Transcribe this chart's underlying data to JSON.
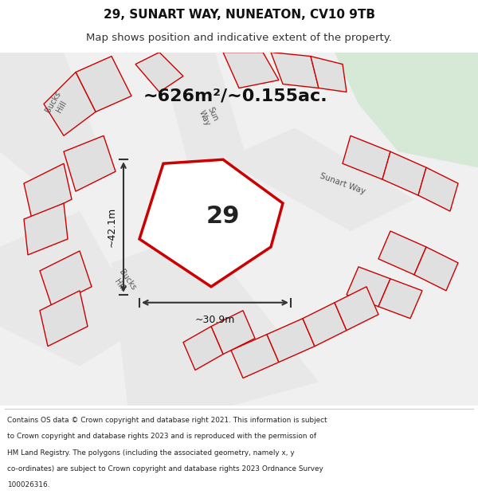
{
  "title_line1": "29, SUNART WAY, NUNEATON, CV10 9TB",
  "title_line2": "Map shows position and indicative extent of the property.",
  "footer_lines": [
    "Contains OS data © Crown copyright and database right 2021. This information is subject",
    "to Crown copyright and database rights 2023 and is reproduced with the permission of",
    "HM Land Registry. The polygons (including the associated geometry, namely x, y",
    "co-ordinates) are subject to Crown copyright and database rights 2023 Ordnance Survey",
    "100026316."
  ],
  "area_label": "~626m²/~0.155ac.",
  "property_number": "29",
  "dim_width": "~30.9m",
  "dim_height": "~42.1m",
  "map_bg": "#f0f0f0",
  "plot_outline_color": "#cc0000",
  "neighbor_fill": "#e0e0e0",
  "neighbor_stroke": "#cc0000",
  "green_area": "#d6e8d6",
  "title_bg": "#ffffff",
  "footer_bg": "#ffffff",
  "dim_line_color": "#333333",
  "road_fill": "#e8e8e8"
}
